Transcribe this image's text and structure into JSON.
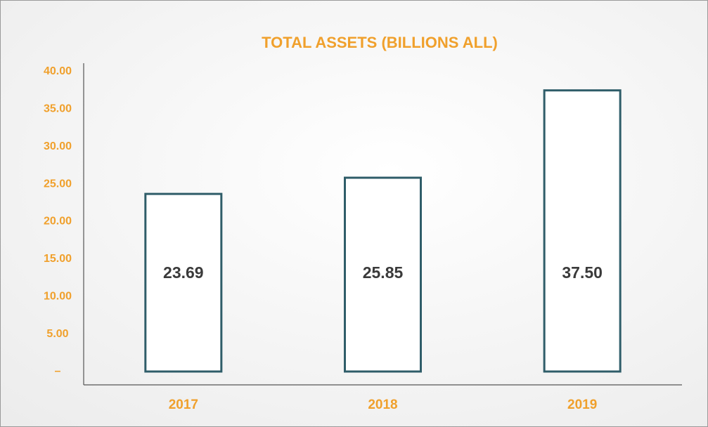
{
  "chart_data": {
    "type": "bar",
    "title": "TOTAL ASSETS (BILLIONS ALL)",
    "categories": [
      "2017",
      "2018",
      "2019"
    ],
    "values": [
      23.69,
      25.85,
      37.5
    ],
    "value_labels": [
      "23.69",
      "25.85",
      "37.50"
    ],
    "color": "#2f5d69",
    "ylim": [
      0,
      40
    ],
    "yticks": [
      {
        "value": 0,
        "label": "–"
      },
      {
        "value": 5,
        "label": "5.00"
      },
      {
        "value": 10,
        "label": "10.00"
      },
      {
        "value": 15,
        "label": "15.00"
      },
      {
        "value": 20,
        "label": "20.00"
      },
      {
        "value": 25,
        "label": "25.00"
      },
      {
        "value": 30,
        "label": "30.00"
      },
      {
        "value": 35,
        "label": "35.00"
      },
      {
        "value": 40,
        "label": "40.00"
      }
    ],
    "grid": false
  }
}
